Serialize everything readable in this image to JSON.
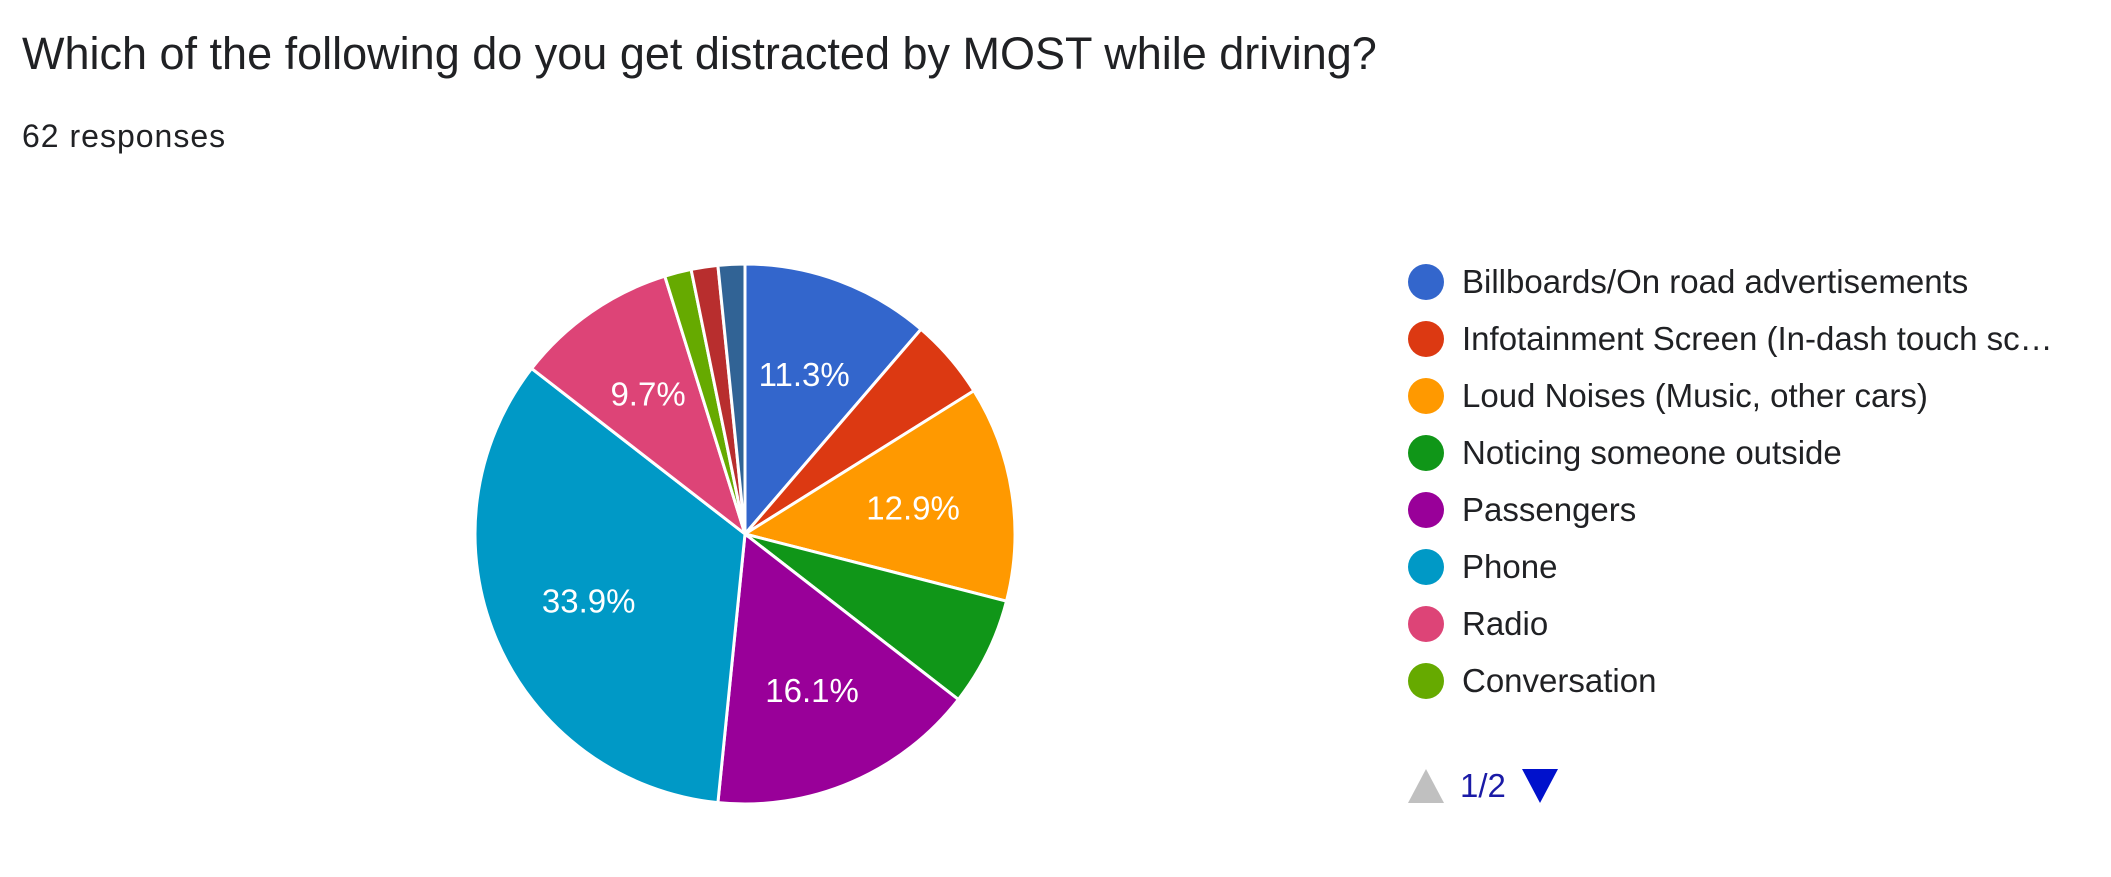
{
  "header": {
    "title": "Which of the following do you get distracted by MOST while driving?",
    "subtitle": "62 responses"
  },
  "chart_data": {
    "type": "pie",
    "start_angle_deg": 90,
    "direction": "clockwise",
    "slices": [
      {
        "label": "Billboards/On road advertisements",
        "value": 11.3,
        "color": "#3366cc",
        "data_label": "11.3%"
      },
      {
        "label": "Infotainment Screen (In-dash touch sc…",
        "value": 4.8,
        "color": "#dc3912",
        "data_label": ""
      },
      {
        "label": "Loud Noises (Music, other cars)",
        "value": 12.9,
        "color": "#ff9900",
        "data_label": "12.9%"
      },
      {
        "label": "Noticing someone outside",
        "value": 6.5,
        "color": "#109618",
        "data_label": ""
      },
      {
        "label": "Passengers",
        "value": 16.1,
        "color": "#990099",
        "data_label": "16.1%"
      },
      {
        "label": "Phone",
        "value": 33.9,
        "color": "#0099c6",
        "data_label": "33.9%"
      },
      {
        "label": "Radio",
        "value": 9.7,
        "color": "#dd4477",
        "data_label": "9.7%"
      },
      {
        "label": "Conversation",
        "value": 1.6,
        "color": "#66aa00",
        "data_label": ""
      },
      {
        "label": "",
        "value": 1.6,
        "color": "#b82e2e",
        "data_label": ""
      },
      {
        "label": "",
        "value": 1.6,
        "color": "#316395",
        "data_label": ""
      }
    ],
    "legend_position": "right"
  },
  "legend": {
    "items": [
      {
        "label": "Billboards/On road advertisements",
        "color": "#3366cc"
      },
      {
        "label": "Infotainment Screen (In-dash touch sc…",
        "color": "#dc3912"
      },
      {
        "label": "Loud Noises (Music, other cars)",
        "color": "#ff9900"
      },
      {
        "label": "Noticing someone outside",
        "color": "#109618"
      },
      {
        "label": "Passengers",
        "color": "#990099"
      },
      {
        "label": "Phone",
        "color": "#0099c6"
      },
      {
        "label": "Radio",
        "color": "#dd4477"
      },
      {
        "label": "Conversation",
        "color": "#66aa00"
      }
    ],
    "pager": {
      "text": "1/2",
      "prev_icon": "triangle-up-icon",
      "next_icon": "triangle-down-icon"
    }
  }
}
